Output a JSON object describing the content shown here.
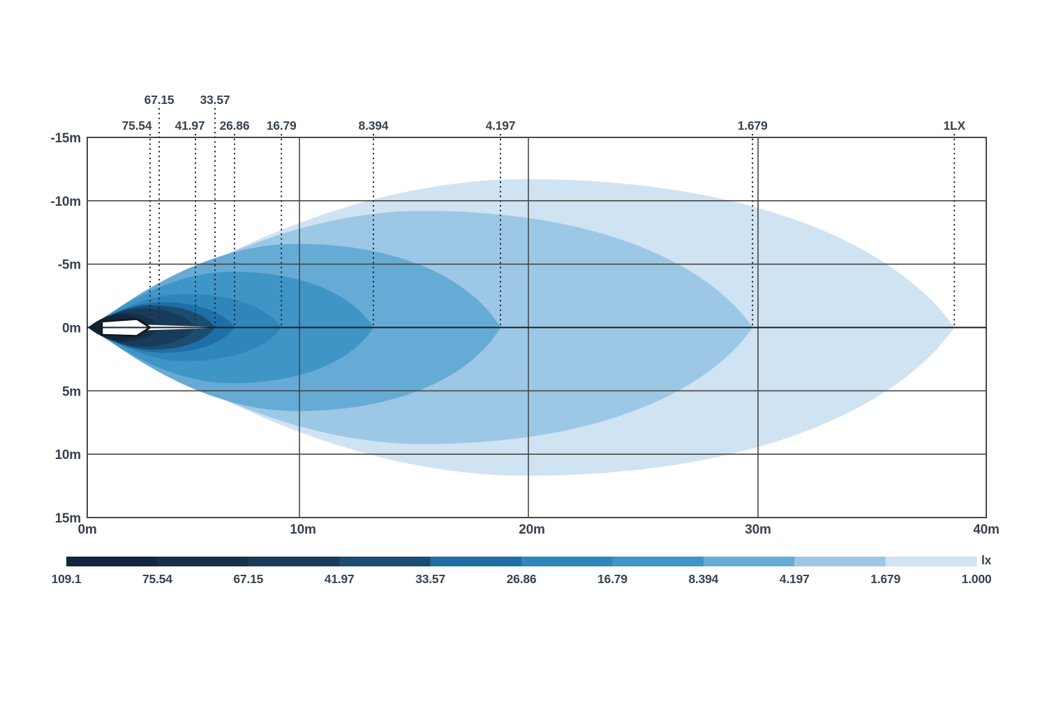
{
  "chart_data": {
    "type": "isolux_contour",
    "description": "Beam pattern / illuminance distribution chart with nested isolux contours",
    "unit": "lx",
    "x_axis": {
      "ticks": [
        "0m",
        "10m",
        "20m",
        "30m",
        "40m"
      ],
      "tick_values": [
        0,
        10,
        20,
        30,
        40
      ],
      "range_m": [
        0,
        40
      ]
    },
    "y_axis": {
      "ticks": [
        "-15m",
        "-10m",
        "-5m",
        "0m",
        "5m",
        "10m",
        "15m"
      ],
      "tick_values": [
        -15,
        -10,
        -5,
        0,
        5,
        10,
        15
      ],
      "range_m": [
        -15,
        15
      ]
    },
    "contours": [
      {
        "level": "1.000",
        "label": "1LX",
        "reach_m": 38.6,
        "half_width_m": 11.7,
        "start_m": 0.45,
        "color": "#cfe3f2",
        "label_row": 2
      },
      {
        "level": "1.679",
        "label": "1.679",
        "reach_m": 29.76,
        "half_width_m": 9.2,
        "start_m": 0.3,
        "color": "#9cc8e5",
        "label_row": 2
      },
      {
        "level": "4.197",
        "label": "4.197",
        "reach_m": 18.78,
        "half_width_m": 6.6,
        "start_m": 0.2,
        "color": "#66abd5",
        "label_row": 2
      },
      {
        "level": "8.394",
        "label": "8.394",
        "reach_m": 13.23,
        "half_width_m": 4.4,
        "start_m": 0.12,
        "color": "#3f95c6",
        "label_row": 2
      },
      {
        "level": "16.79",
        "label": "16.79",
        "reach_m": 9.15,
        "half_width_m": 2.65,
        "start_m": 0.1,
        "color": "#2e86bb",
        "label_row": 2
      },
      {
        "level": "26.86",
        "label": "26.86",
        "reach_m": 6.94,
        "half_width_m": 2.0,
        "start_m": 0.08,
        "color": "#1d6fa6",
        "label_row": 2
      },
      {
        "level": "33.57",
        "label": "33.57",
        "reach_m": 6.02,
        "half_width_m": 1.75,
        "start_m": 0.06,
        "color": "#1b4d71",
        "label_row": 1
      },
      {
        "level": "41.97",
        "label": "41.97",
        "reach_m": 5.1,
        "half_width_m": 1.5,
        "start_m": 0.05,
        "color": "#1a3a5a",
        "label_row": 2
      },
      {
        "level": "67.15",
        "label": "67.15",
        "reach_m": 3.39,
        "half_width_m": 1.15,
        "start_m": 0.04,
        "color": "#163048",
        "label_row": 1
      },
      {
        "level": "75.54",
        "label": "75.54",
        "reach_m": 2.96,
        "half_width_m": 1.0,
        "start_m": 0.03,
        "color": "#12273f",
        "label_row": 2
      },
      {
        "level": "109.1",
        "label": "",
        "reach_m": 2.0,
        "half_width_m": 0.65,
        "start_m": 0.03,
        "color": "#0f2236",
        "label_row": 0
      }
    ],
    "legend": {
      "unit": "lx",
      "boundary_labels": [
        "109.1",
        "75.54",
        "67.15",
        "41.97",
        "33.57",
        "26.86",
        "16.79",
        "8.394",
        "4.197",
        "1.679",
        "1.000"
      ],
      "segment_colors": [
        "#12273f",
        "#163048",
        "#1a3a5a",
        "#1b4d71",
        "#1d6fa6",
        "#2e86bb",
        "#3f95c6",
        "#66abd5",
        "#9cc8e5",
        "#cfe3f2"
      ]
    },
    "grid": true,
    "lamp_marker": "white arrow-shaped luminaire outline at origin on the 0m axis"
  }
}
